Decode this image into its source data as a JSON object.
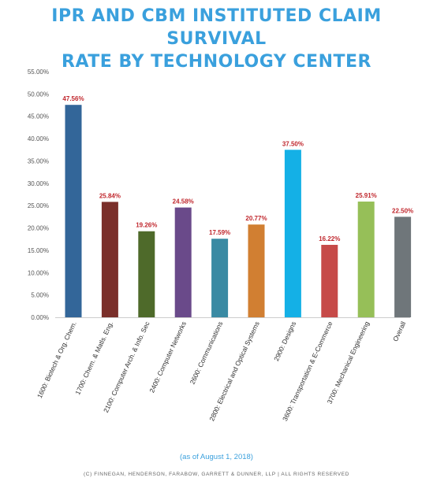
{
  "header": {
    "title_line1": "IPR AND CBM INSTITUTED CLAIM SURVIVAL",
    "title_line2": "RATE BY TECHNOLOGY CENTER"
  },
  "footer": {
    "note": "(as of August 1, 2018)",
    "copyright": "(C) FINNEGAN, HENDERSON, FARABOW, GARRETT & DUNNER, LLP | ALL RIGHTS RESERVED"
  },
  "chart_data": {
    "type": "bar",
    "title": "IPR AND CBM INSTITUTED CLAIM SURVIVAL RATE BY TECHNOLOGY CENTER",
    "ylim": [
      0,
      55
    ],
    "yticks": [
      0,
      5,
      10,
      15,
      20,
      25,
      30,
      35,
      40,
      45,
      50,
      55
    ],
    "ytick_labels": [
      "0.00%",
      "5.00%",
      "10.00%",
      "15.00%",
      "20.00%",
      "25.00%",
      "30.00%",
      "35.00%",
      "40.00%",
      "45.00%",
      "50.00%",
      "55.00%"
    ],
    "categories": [
      "1600: Biotech & Org. Chem.",
      "1700: Chem. & Matls. Eng.",
      "2100: Computer Arch. & Info. Sec",
      "2400: Computer Networks",
      "2600: Communications",
      "2800: Electrical and Optical Systems",
      "2900: Designs",
      "3600: Transportation & E-Commerce",
      "3700: Mechanical Engineering",
      "Overall"
    ],
    "values": [
      47.56,
      25.84,
      19.26,
      24.58,
      17.59,
      20.77,
      37.5,
      16.22,
      25.91,
      22.5
    ],
    "data_labels": [
      "47.56%",
      "25.84%",
      "19.26%",
      "24.58%",
      "17.59%",
      "20.77%",
      "37.50%",
      "16.22%",
      "25.91%",
      "22.50%"
    ],
    "bar_colors": [
      "#336699",
      "#7a2f2a",
      "#4e6a2a",
      "#6a4a8a",
      "#3a8aa3",
      "#d17f32",
      "#14b0e6",
      "#c64a48",
      "#96bf58",
      "#6f767a"
    ],
    "label_color": "#c0272d",
    "grid": false,
    "legend": "none"
  }
}
